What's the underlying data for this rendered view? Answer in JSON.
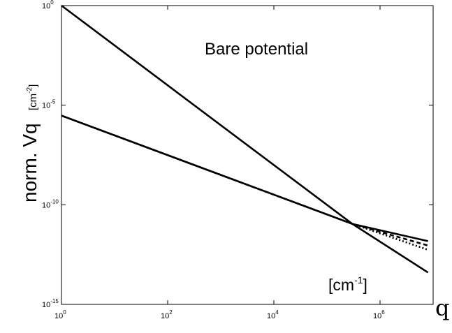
{
  "chart_data": {
    "type": "line",
    "title": "Bare potential",
    "xlabel": "q",
    "ylabel": "norm. Vq",
    "ylabel_unit": "[cm",
    "ylabel_unit_exp": "-2",
    "ylabel_unit_close": "]",
    "x_unit": "[cm",
    "x_unit_exp": "-1",
    "x_unit_close": "]",
    "xscale": "log",
    "yscale": "log",
    "xlim": [
      1,
      10000000
    ],
    "ylim": [
      1e-15,
      1
    ],
    "x_ticks": [
      {
        "base": "10",
        "exp": "0",
        "value": 1
      },
      {
        "base": "10",
        "exp": "2",
        "value": 100
      },
      {
        "base": "10",
        "exp": "4",
        "value": 10000
      },
      {
        "base": "10",
        "exp": "6",
        "value": 1000000
      }
    ],
    "y_ticks": [
      {
        "base": "10",
        "exp": "0",
        "value": 1
      },
      {
        "base": "10",
        "exp": "-5",
        "value": 1e-05
      },
      {
        "base": "10",
        "exp": "-10",
        "value": 1e-10
      },
      {
        "base": "10",
        "exp": "-15",
        "value": 1e-15
      }
    ],
    "grid": false,
    "series": [
      {
        "style": "solid",
        "x": [
          1,
          300000,
          8000000
        ],
        "y": [
          1,
          1.1e-11,
          4e-14
        ]
      },
      {
        "style": "solid",
        "x": [
          1,
          300000,
          8000000
        ],
        "y": [
          3e-06,
          1.1e-11,
          1.5e-12
        ]
      },
      {
        "style": "dashed",
        "x": [
          1,
          300000,
          8000000
        ],
        "y": [
          3e-06,
          1.1e-11,
          9e-13
        ]
      },
      {
        "style": "dotted",
        "x": [
          1,
          300000,
          8000000
        ],
        "y": [
          3e-06,
          1.1e-11,
          5.5e-13
        ]
      }
    ]
  }
}
